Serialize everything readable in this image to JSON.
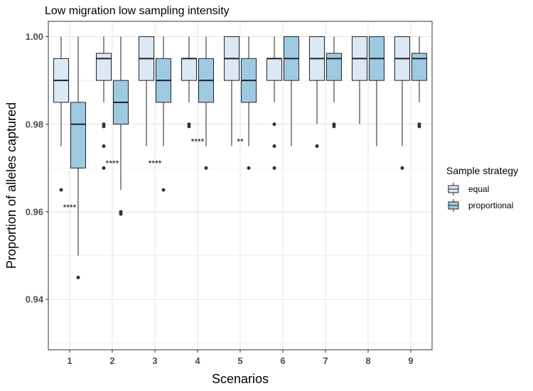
{
  "chart_data": {
    "type": "boxplot",
    "title": "Low migration low sampling intensity",
    "xlabel": "Scenarios",
    "ylabel": "Proportion of alleles captured",
    "ylim": [
      0.9285,
      1.0035
    ],
    "yticks": [
      0.94,
      0.96,
      0.98,
      1.0
    ],
    "ytick_labels": [
      "0.94",
      "0.96",
      "0.98",
      "1.00"
    ],
    "categories": [
      "1",
      "2",
      "3",
      "4",
      "5",
      "6",
      "7",
      "8",
      "9"
    ],
    "grid": true,
    "legend": {
      "title": "Sample strategy",
      "position": "right",
      "entries": [
        "equal",
        "proportional"
      ]
    },
    "colors": {
      "equal": "#dde8f5",
      "proportional": "#9ecae1",
      "outline": "#222222"
    },
    "series": [
      {
        "name": "equal",
        "boxes": [
          {
            "category": "1",
            "low": 0.975,
            "q1": 0.985,
            "median": 0.99,
            "q3": 0.995,
            "high": 1.0,
            "outliers": [
              0.965
            ]
          },
          {
            "category": "2",
            "low": 0.985,
            "q1": 0.99,
            "median": 0.995,
            "q3": 0.9962,
            "high": 1.0,
            "outliers": [
              0.98,
              0.9795,
              0.975,
              0.97
            ]
          },
          {
            "category": "3",
            "low": 0.975,
            "q1": 0.99,
            "median": 0.995,
            "q3": 1.0,
            "high": 1.0,
            "outliers": []
          },
          {
            "category": "4",
            "low": 0.985,
            "q1": 0.99,
            "median": 0.995,
            "q3": 0.995,
            "high": 1.0,
            "outliers": [
              0.98,
              0.9795
            ]
          },
          {
            "category": "5",
            "low": 0.975,
            "q1": 0.99,
            "median": 0.995,
            "q3": 1.0,
            "high": 1.0,
            "outliers": []
          },
          {
            "category": "6",
            "low": 0.985,
            "q1": 0.99,
            "median": 0.995,
            "q3": 0.995,
            "high": 1.0,
            "outliers": [
              0.98,
              0.975,
              0.97
            ]
          },
          {
            "category": "7",
            "low": 0.98,
            "q1": 0.99,
            "median": 0.995,
            "q3": 1.0,
            "high": 1.0,
            "outliers": [
              0.975
            ]
          },
          {
            "category": "8",
            "low": 0.98,
            "q1": 0.99,
            "median": 0.995,
            "q3": 1.0,
            "high": 1.0,
            "outliers": []
          },
          {
            "category": "9",
            "low": 0.975,
            "q1": 0.99,
            "median": 0.995,
            "q3": 1.0,
            "high": 1.0,
            "outliers": [
              0.97
            ]
          }
        ]
      },
      {
        "name": "proportional",
        "boxes": [
          {
            "category": "1",
            "low": 0.95,
            "q1": 0.97,
            "median": 0.98,
            "q3": 0.985,
            "high": 1.0,
            "outliers": [
              0.945
            ]
          },
          {
            "category": "2",
            "low": 0.965,
            "q1": 0.98,
            "median": 0.985,
            "q3": 0.99,
            "high": 1.0,
            "outliers": [
              0.96,
              0.9595
            ]
          },
          {
            "category": "3",
            "low": 0.975,
            "q1": 0.985,
            "median": 0.99,
            "q3": 0.995,
            "high": 1.0,
            "outliers": [
              0.965
            ]
          },
          {
            "category": "4",
            "low": 0.975,
            "q1": 0.985,
            "median": 0.99,
            "q3": 0.995,
            "high": 1.0,
            "outliers": [
              0.97
            ]
          },
          {
            "category": "5",
            "low": 0.975,
            "q1": 0.985,
            "median": 0.99,
            "q3": 0.995,
            "high": 1.0,
            "outliers": [
              0.97
            ]
          },
          {
            "category": "6",
            "low": 0.975,
            "q1": 0.99,
            "median": 0.995,
            "q3": 1.0,
            "high": 1.0,
            "outliers": []
          },
          {
            "category": "7",
            "low": 0.985,
            "q1": 0.99,
            "median": 0.995,
            "q3": 0.9962,
            "high": 1.0,
            "outliers": [
              0.98,
              0.9795
            ]
          },
          {
            "category": "8",
            "low": 0.975,
            "q1": 0.99,
            "median": 0.995,
            "q3": 1.0,
            "high": 1.0,
            "outliers": []
          },
          {
            "category": "9",
            "low": 0.985,
            "q1": 0.99,
            "median": 0.995,
            "q3": 0.9962,
            "high": 1.0,
            "outliers": [
              0.98,
              0.9795
            ]
          }
        ]
      }
    ],
    "annotations": [
      {
        "category": "1",
        "text": "****",
        "y": 0.961
      },
      {
        "category": "2",
        "text": "****",
        "y": 0.971
      },
      {
        "category": "3",
        "text": "****",
        "y": 0.971
      },
      {
        "category": "4",
        "text": "****",
        "y": 0.976
      },
      {
        "category": "5",
        "text": "**",
        "y": 0.976
      }
    ]
  }
}
